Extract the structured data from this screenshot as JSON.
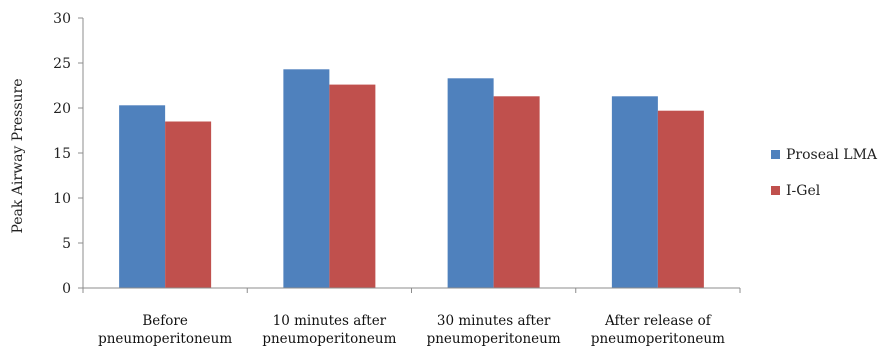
{
  "chart_data": {
    "type": "bar",
    "title": "",
    "xlabel": "",
    "ylabel": "Peak Airway Pressure",
    "ylim": [
      0,
      30
    ],
    "yticks": [
      0,
      5,
      10,
      15,
      20,
      25,
      30
    ],
    "grid": false,
    "legend_position": "right",
    "categories": [
      [
        "Before",
        "pneumoperitoneum"
      ],
      [
        "10 minutes after",
        "pneumoperitoneum"
      ],
      [
        "30 minutes after",
        "pneumoperitoneum"
      ],
      [
        "After release of",
        "pneumoperitoneum"
      ]
    ],
    "series": [
      {
        "name": "Proseal LMA",
        "color": "#4F81BD",
        "values": [
          20.3,
          24.3,
          23.3,
          21.3
        ]
      },
      {
        "name": "I-Gel",
        "color": "#C0504D",
        "values": [
          18.5,
          22.6,
          21.3,
          19.7
        ]
      }
    ]
  }
}
